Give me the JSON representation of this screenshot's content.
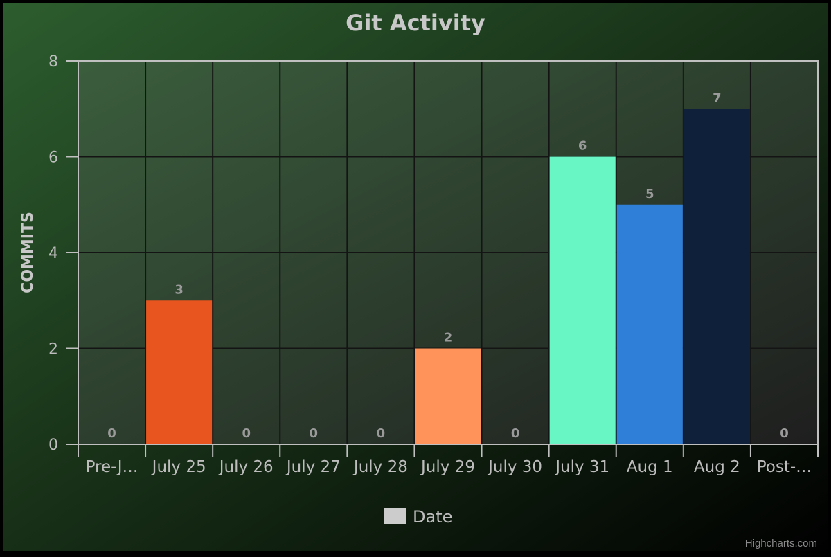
{
  "chart_data": {
    "type": "bar",
    "title": "Git Activity",
    "xlabel": "",
    "ylabel": "COMMITS",
    "ylim": [
      0,
      8
    ],
    "yticks": [
      0,
      2,
      4,
      6,
      8
    ],
    "grid": true,
    "categories": [
      "Pre-J…",
      "July 25",
      "July 26",
      "July 27",
      "July 28",
      "July 29",
      "July 30",
      "July 31",
      "Aug 1",
      "Aug 2",
      "Post-…"
    ],
    "values": [
      0,
      3,
      0,
      0,
      0,
      2,
      0,
      6,
      5,
      7,
      0
    ],
    "bar_colors": [
      "#3a3a3a",
      "#e8551e",
      "#3a3a3a",
      "#3a3a3a",
      "#3a3a3a",
      "#ff935a",
      "#3a3a3a",
      "#68f7c4",
      "#2f7fd9",
      "#0f203b",
      "#3a3a3a"
    ],
    "legend": {
      "label": "Date",
      "color": "#cccccc",
      "placement": "bottom-center"
    }
  },
  "credits": "Highcharts.com",
  "colors": {
    "background_top": "#2d5e2f",
    "background_bottom": "#040404",
    "plot_top": "#3c5f3e",
    "plot_bottom": "#1f1f1f",
    "grid": "#141414",
    "axis": "#c0c0c0",
    "frame": "#c0c0c0"
  }
}
